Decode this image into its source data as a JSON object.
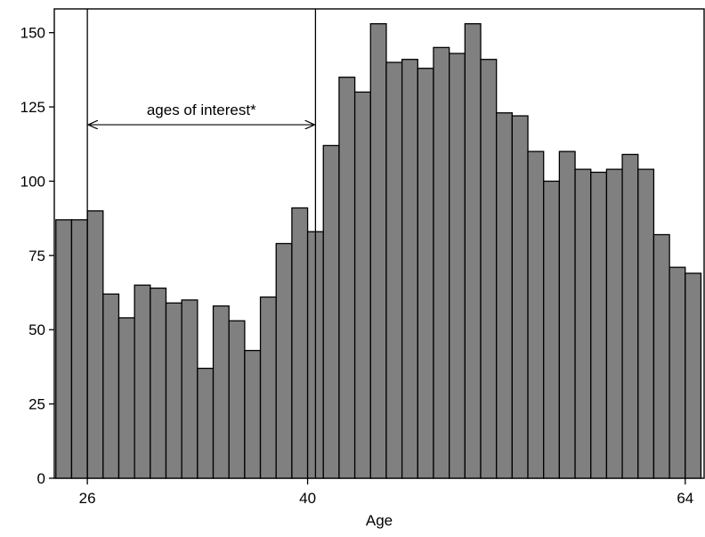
{
  "chart_data": {
    "type": "bar",
    "title": "",
    "xlabel": "Age",
    "ylabel": "",
    "x_range": [
      23.9,
      65.2
    ],
    "ylim": [
      0,
      158
    ],
    "grid": false,
    "bin_width": 1,
    "x": [
      24.5,
      25.5,
      26.5,
      27.5,
      28.5,
      29.5,
      30.5,
      31.5,
      32.5,
      33.5,
      34.5,
      35.5,
      36.5,
      37.5,
      38.5,
      39.5,
      40.5,
      41.5,
      42.5,
      43.5,
      44.5,
      45.5,
      46.5,
      47.5,
      48.5,
      49.5,
      50.5,
      51.5,
      52.5,
      53.5,
      54.5,
      55.5,
      56.5,
      57.5,
      58.5,
      59.5,
      60.5,
      61.5,
      62.5,
      63.5,
      64.5
    ],
    "values": [
      87,
      87,
      90,
      62,
      54,
      65,
      64,
      59,
      60,
      37,
      58,
      53,
      43,
      61,
      79,
      91,
      83,
      112,
      135,
      130,
      153,
      140,
      141,
      138,
      145,
      143,
      153,
      141,
      123,
      122,
      110,
      100,
      110,
      104,
      103,
      104,
      109,
      104,
      82,
      71,
      69
    ],
    "x_ticks": [
      26,
      40,
      64
    ],
    "y_ticks": [
      0,
      25,
      50,
      75,
      100,
      125,
      150
    ],
    "bar_color": "#808080",
    "edge_color": "#000000",
    "annotations": [
      {
        "type": "vline",
        "x": 26
      },
      {
        "type": "vline",
        "x": 40.5
      },
      {
        "type": "arrow",
        "from": 26,
        "to": 40.5,
        "y": 119,
        "text": "ages of interest*"
      }
    ]
  }
}
